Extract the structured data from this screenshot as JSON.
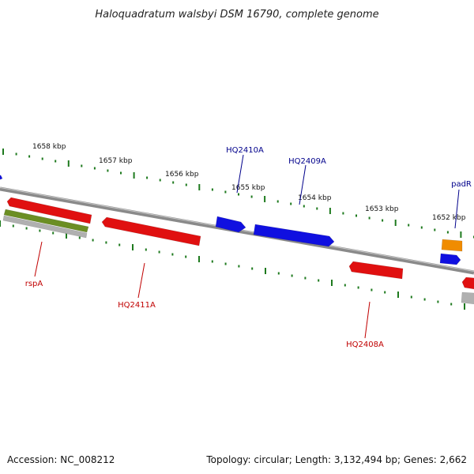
{
  "title": "Haloquadratum walsbyi DSM 16790, complete genome",
  "footer": {
    "accession": "Accession: NC_008212",
    "summary": "Topology: circular; Length: 3,132,494 bp; Genes: 2,662"
  },
  "colors": {
    "forward_gene": "#1010e0",
    "reverse_gene": "#e01010",
    "orange_gene": "#f08c00",
    "olive_feature": "#6b8e23",
    "grey_feature": "#b0b0b0",
    "backbone": "#8a8a8a",
    "tick": "#1e7a1e",
    "forward_label": "#00008b",
    "reverse_label": "#c00000"
  },
  "ticks": [
    {
      "label": "1658 kbp"
    },
    {
      "label": "1657 kbp"
    },
    {
      "label": "1656 kbp"
    },
    {
      "label": "1655 kbp"
    },
    {
      "label": "1654 kbp"
    },
    {
      "label": "1653 kbp"
    },
    {
      "label": "1652 kbp"
    }
  ],
  "genes": [
    {
      "label": "HQ2410A",
      "strand": "forward"
    },
    {
      "label": "HQ2409A",
      "strand": "forward"
    },
    {
      "label": "padR",
      "strand": "forward"
    },
    {
      "label": "rspA",
      "strand": "reverse"
    },
    {
      "label": "HQ2411A",
      "strand": "reverse"
    },
    {
      "label": "HQ2408A",
      "strand": "reverse"
    }
  ]
}
